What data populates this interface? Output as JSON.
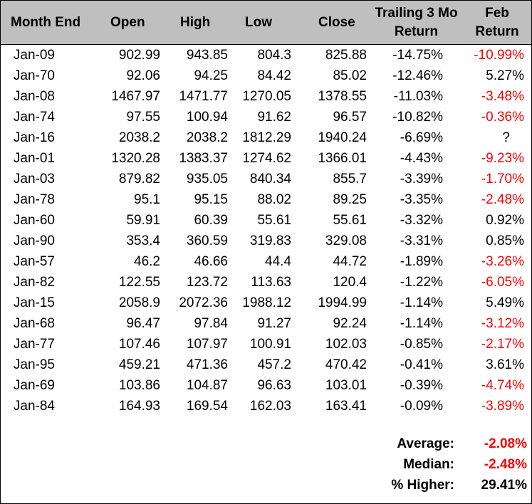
{
  "headers": {
    "month_end": "Month End",
    "open": "Open",
    "high": "High",
    "low": "Low",
    "close": "Close",
    "trailing_line1": "Trailing 3 Mo",
    "trailing_line2": "Return",
    "feb_line1": "Feb",
    "feb_line2": "Return"
  },
  "rows": [
    {
      "month": "Jan-09",
      "open": "902.99",
      "high": "943.85",
      "low": "804.3",
      "close": "825.88",
      "trailing": "-14.75%",
      "feb": "-10.99%",
      "feb_neg": true
    },
    {
      "month": "Jan-70",
      "open": "92.06",
      "high": "94.25",
      "low": "84.42",
      "close": "85.02",
      "trailing": "-12.46%",
      "feb": "5.27%",
      "feb_neg": false
    },
    {
      "month": "Jan-08",
      "open": "1467.97",
      "high": "1471.77",
      "low": "1270.05",
      "close": "1378.55",
      "trailing": "-11.03%",
      "feb": "-3.48%",
      "feb_neg": true
    },
    {
      "month": "Jan-74",
      "open": "97.55",
      "high": "100.94",
      "low": "91.62",
      "close": "96.57",
      "trailing": "-10.82%",
      "feb": "-0.36%",
      "feb_neg": true
    },
    {
      "month": "Jan-16",
      "open": "2038.2",
      "high": "2038.2",
      "low": "1812.29",
      "close": "1940.24",
      "trailing": "-6.69%",
      "feb": "?",
      "feb_neg": false
    },
    {
      "month": "Jan-01",
      "open": "1320.28",
      "high": "1383.37",
      "low": "1274.62",
      "close": "1366.01",
      "trailing": "-4.43%",
      "feb": "-9.23%",
      "feb_neg": true
    },
    {
      "month": "Jan-03",
      "open": "879.82",
      "high": "935.05",
      "low": "840.34",
      "close": "855.7",
      "trailing": "-3.39%",
      "feb": "-1.70%",
      "feb_neg": true
    },
    {
      "month": "Jan-78",
      "open": "95.1",
      "high": "95.15",
      "low": "88.02",
      "close": "89.25",
      "trailing": "-3.35%",
      "feb": "-2.48%",
      "feb_neg": true
    },
    {
      "month": "Jan-60",
      "open": "59.91",
      "high": "60.39",
      "low": "55.61",
      "close": "55.61",
      "trailing": "-3.32%",
      "feb": "0.92%",
      "feb_neg": false
    },
    {
      "month": "Jan-90",
      "open": "353.4",
      "high": "360.59",
      "low": "319.83",
      "close": "329.08",
      "trailing": "-3.31%",
      "feb": "0.85%",
      "feb_neg": false
    },
    {
      "month": "Jan-57",
      "open": "46.2",
      "high": "46.66",
      "low": "44.4",
      "close": "44.72",
      "trailing": "-1.89%",
      "feb": "-3.26%",
      "feb_neg": true
    },
    {
      "month": "Jan-82",
      "open": "122.55",
      "high": "123.72",
      "low": "113.63",
      "close": "120.4",
      "trailing": "-1.22%",
      "feb": "-6.05%",
      "feb_neg": true
    },
    {
      "month": "Jan-15",
      "open": "2058.9",
      "high": "2072.36",
      "low": "1988.12",
      "close": "1994.99",
      "trailing": "-1.14%",
      "feb": "5.49%",
      "feb_neg": false
    },
    {
      "month": "Jan-68",
      "open": "96.47",
      "high": "97.84",
      "low": "91.27",
      "close": "92.24",
      "trailing": "-1.14%",
      "feb": "-3.12%",
      "feb_neg": true
    },
    {
      "month": "Jan-77",
      "open": "107.46",
      "high": "107.97",
      "low": "100.91",
      "close": "102.03",
      "trailing": "-0.85%",
      "feb": "-2.17%",
      "feb_neg": true
    },
    {
      "month": "Jan-95",
      "open": "459.21",
      "high": "471.36",
      "low": "457.2",
      "close": "470.42",
      "trailing": "-0.41%",
      "feb": "3.61%",
      "feb_neg": false
    },
    {
      "month": "Jan-69",
      "open": "103.86",
      "high": "104.87",
      "low": "96.63",
      "close": "103.01",
      "trailing": "-0.39%",
      "feb": "-4.74%",
      "feb_neg": true
    },
    {
      "month": "Jan-84",
      "open": "164.93",
      "high": "169.54",
      "low": "162.03",
      "close": "163.41",
      "trailing": "-0.09%",
      "feb": "-3.89%",
      "feb_neg": true
    }
  ],
  "summary": [
    {
      "label": "Average:",
      "value": "-2.08%",
      "neg": true
    },
    {
      "label": "Median:",
      "value": "-2.48%",
      "neg": true
    },
    {
      "label": "% Higher:",
      "value": "29.41%",
      "neg": false
    }
  ],
  "colors": {
    "header_bg": "#bfbfbf",
    "negative": "#ff0000",
    "text": "#000000"
  }
}
